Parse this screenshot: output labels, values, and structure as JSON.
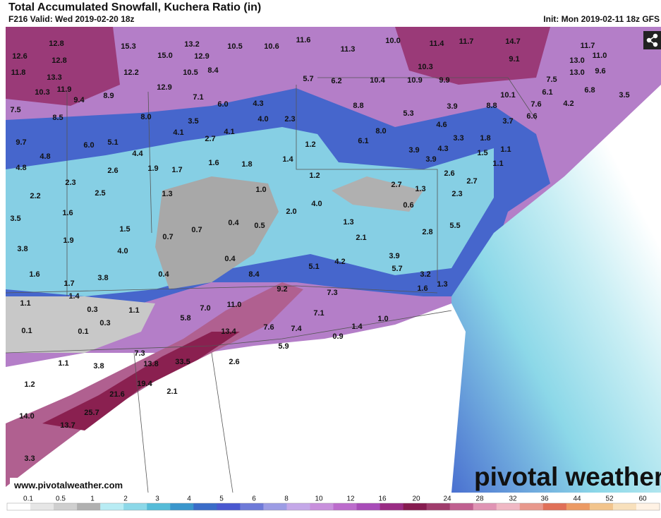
{
  "header": {
    "title": "Total Accumulated Snowfall, Kuchera Ratio (in)",
    "valid": "F216 Valid: Wed 2019-02-20 18z",
    "init": "Init: Mon 2019-02-11 18z GFS"
  },
  "map": {
    "labels": [
      "12.8",
      "15.3",
      "13.2",
      "10.5",
      "10.6",
      "11.6",
      "11.3",
      "10.0",
      "11.4",
      "11.7",
      "14.7",
      "11.7",
      "12.6",
      "12.8",
      "15.0",
      "12.9",
      "9.1",
      "13.0",
      "11.0",
      "11.8",
      "13.3",
      "12.2",
      "10.5",
      "8.4",
      "10.3",
      "13.0",
      "9.6",
      "10.3",
      "11.9",
      "12.9",
      "5.7",
      "6.2",
      "10.4",
      "10.9",
      "9.9",
      "7.5",
      "6.8",
      "3.5",
      "9.4",
      "8.9",
      "7.1",
      "10.1",
      "6.1",
      "6.0",
      "4.3",
      "8.8",
      "3.9",
      "8.8",
      "7.6",
      "4.2",
      "7.5",
      "8.5",
      "8.0",
      "3.5",
      "4.0",
      "2.3",
      "5.3",
      "6.6",
      "4.6",
      "3.7",
      "4.1",
      "4.1",
      "8.0",
      "3.3",
      "1.8",
      "9.7",
      "6.0",
      "5.1",
      "2.7",
      "1.2",
      "6.1",
      "3.9",
      "4.3",
      "1.5",
      "1.1",
      "4.8",
      "4.4",
      "1.6",
      "1.8",
      "1.4",
      "3.9",
      "1.1",
      "4.8",
      "2.6",
      "1.9",
      "1.7",
      "2.6",
      "1.2",
      "2.3",
      "2.7",
      "1.3",
      "2.7",
      "2.3",
      "2.2",
      "2.5",
      "1.3",
      "1.0",
      "4.0",
      "0.6",
      "2.0",
      "1.6",
      "3.5",
      "0.7",
      "0.4",
      "0.5",
      "1.3",
      "5.5",
      "1.5",
      "0.7",
      "1.9",
      "2.1",
      "2.8",
      "3.8",
      "4.0",
      "0.4",
      "3.9",
      "4.2",
      "5.1",
      "5.7",
      "1.6",
      "0.4",
      "3.8",
      "8.4",
      "3.2",
      "1.7",
      "9.2",
      "1.3",
      "1.6",
      "1.4",
      "7.3",
      "1.1",
      "11.0",
      "7.0",
      "0.3",
      "1.1",
      "7.1",
      "0.3",
      "5.8",
      "1.0",
      "1.4",
      "0.1",
      "0.1",
      "7.6",
      "7.4",
      "13.4",
      "0.9",
      "5.9",
      "7.3",
      "1.1",
      "3.8",
      "13.8",
      "33.5",
      "2.6",
      "1.2",
      "19.4",
      "2.1",
      "21.6",
      "25.7",
      "14.0",
      "13.7",
      "3.3"
    ]
  },
  "colorbar": {
    "labels": [
      0.1,
      0.5,
      1,
      2,
      3,
      4,
      5,
      6,
      8,
      10,
      12,
      16,
      20,
      24,
      28,
      32,
      36,
      44,
      52,
      60
    ],
    "colors": [
      "#ffffff",
      "#e6e6e6",
      "#cfcfcf",
      "#b0b0b0",
      "#b8ecf4",
      "#8cd8e8",
      "#56bcd8",
      "#3a96cc",
      "#3a6cc8",
      "#4a58d0",
      "#6e7ad8",
      "#9c9ce4",
      "#c4a8e8",
      "#c890dc",
      "#bc6ccc",
      "#a84cb8",
      "#9a2c84",
      "#861c50",
      "#a03c6c",
      "#c06090",
      "#e094b4",
      "#f0b8c4",
      "#e8988c",
      "#e07058",
      "#ec9a64",
      "#f2c48c",
      "#f8e0bc",
      "#fff2e4"
    ]
  },
  "footer": {
    "url": "www.pivotalweather.com",
    "logo": "pivotal weather"
  }
}
